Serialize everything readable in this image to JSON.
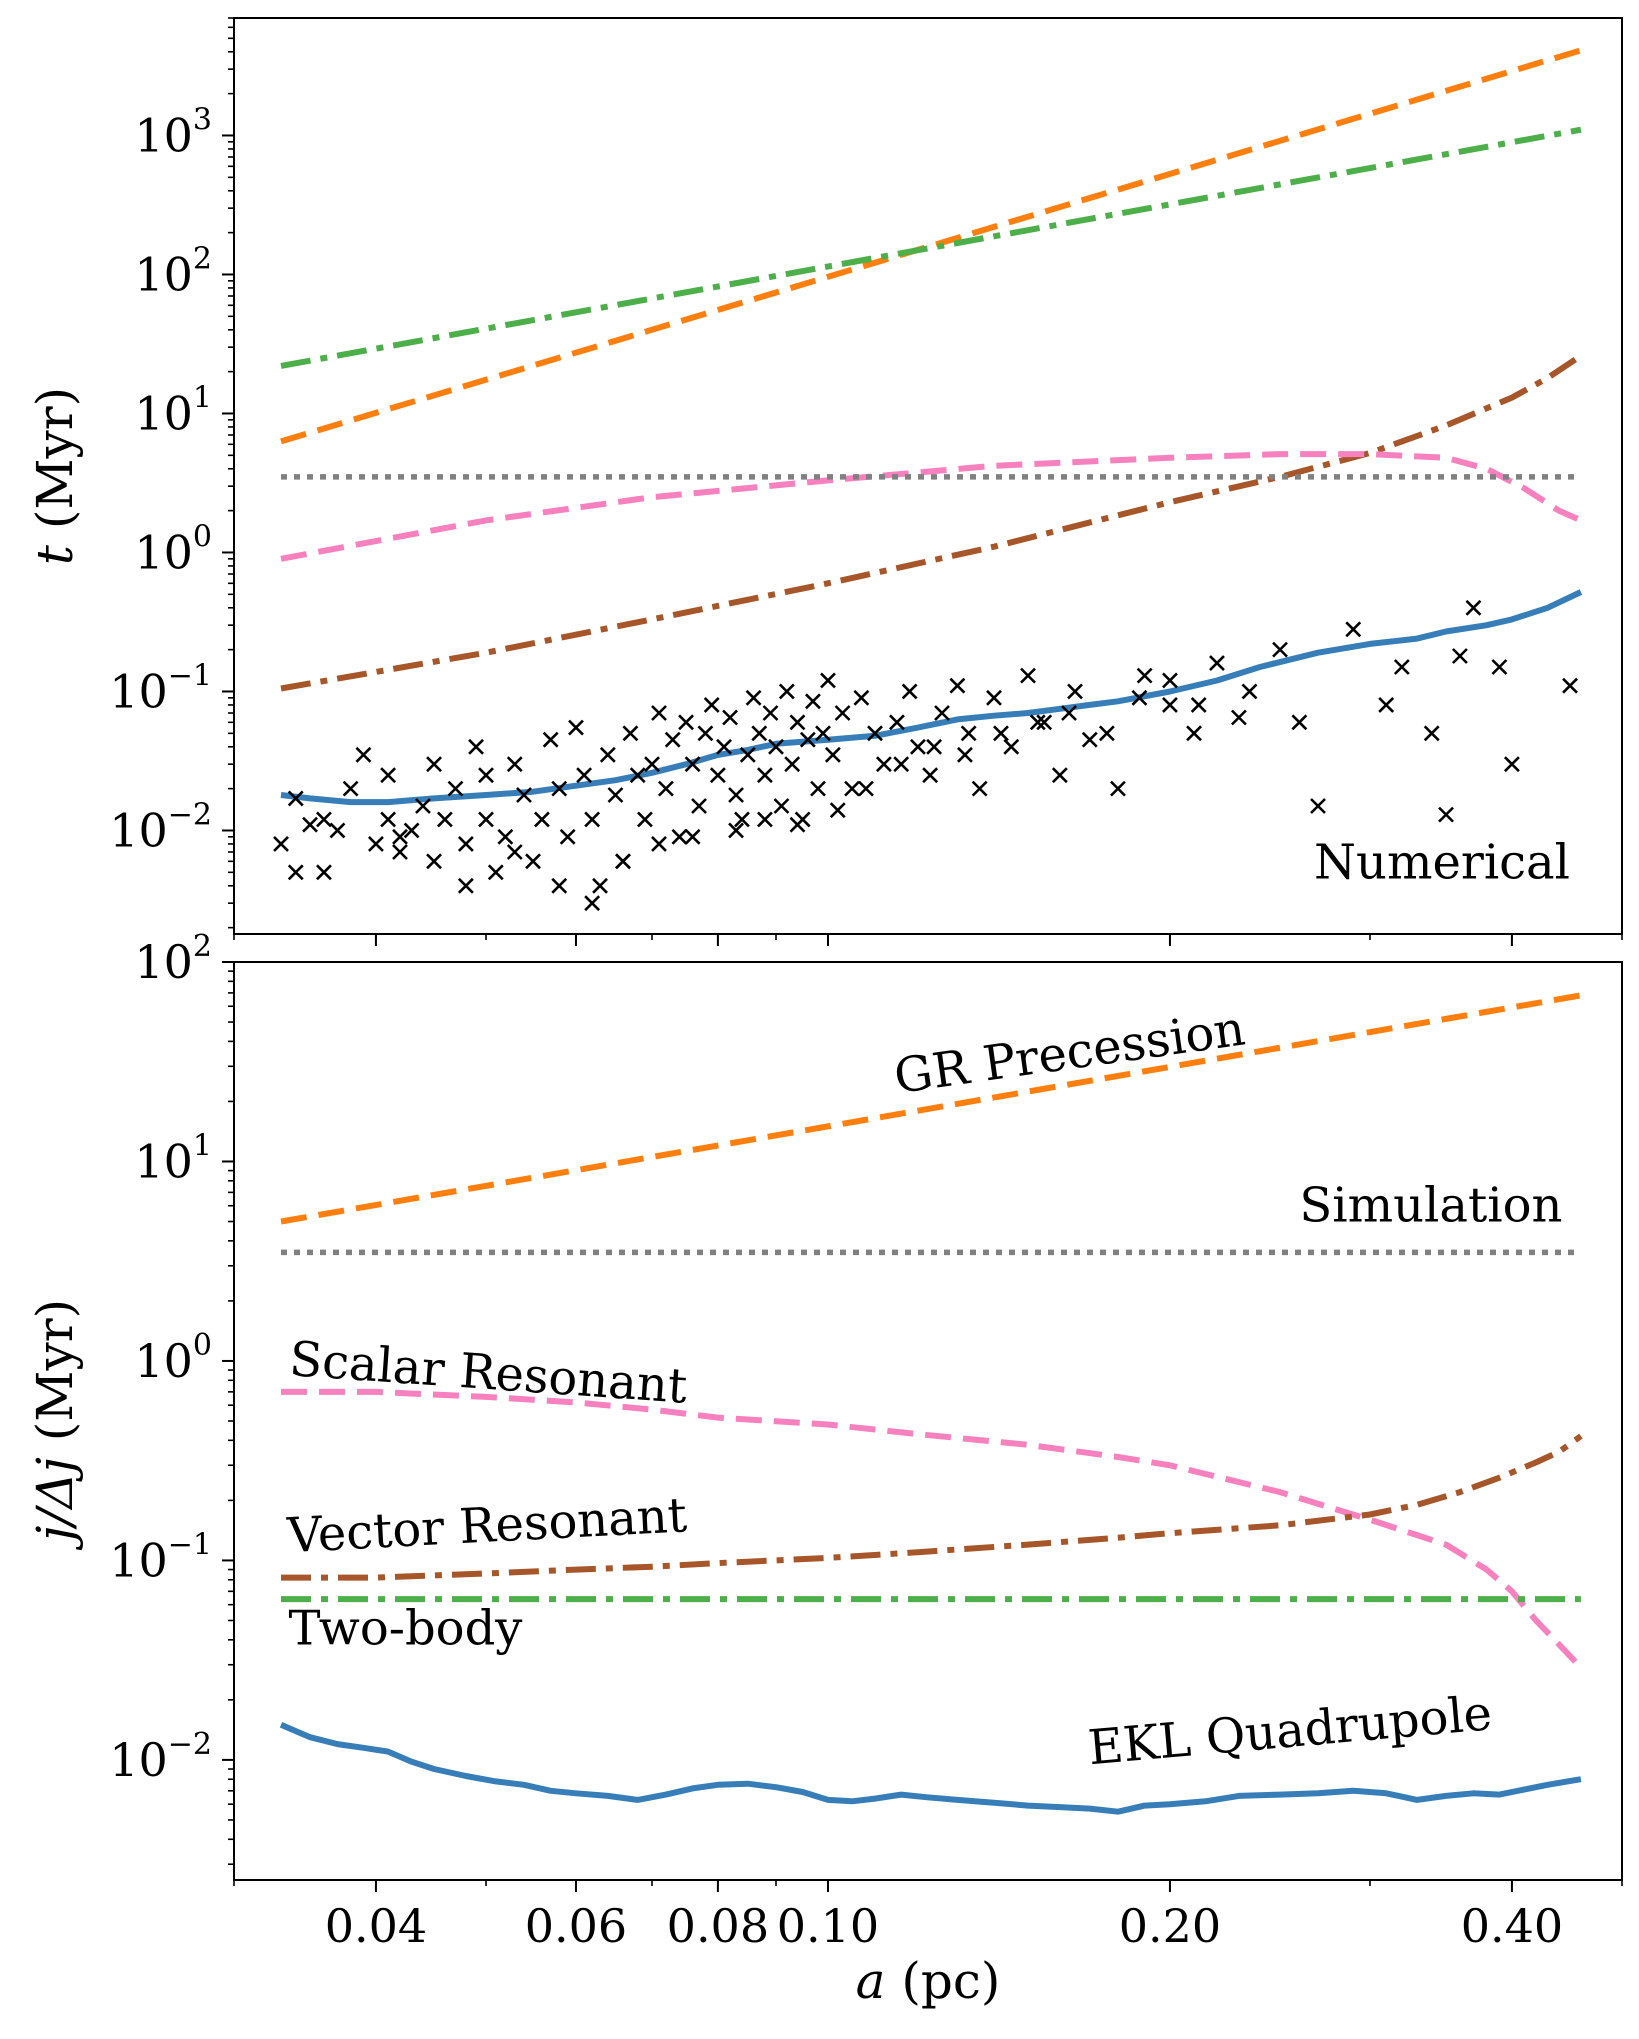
{
  "chart_data": [
    {
      "type": "line",
      "panel": "top",
      "xlabel_var": "a",
      "xlabel_unit": "(pc)",
      "ylabel_var": "t",
      "ylabel_unit": "(Myr)",
      "xscale": "log",
      "yscale": "log",
      "xlim": [
        0.03,
        0.5
      ],
      "ylim": [
        0.0018,
        7000
      ],
      "x_ticks": [
        {
          "value": 0.04,
          "label": "0.04"
        },
        {
          "value": 0.06,
          "label": "0.06"
        },
        {
          "value": 0.08,
          "label": "0.08"
        },
        {
          "value": 0.1,
          "label": "0.10"
        },
        {
          "value": 0.2,
          "label": "0.20"
        },
        {
          "value": 0.4,
          "label": "0.40"
        }
      ],
      "y_ticks": [
        {
          "value": 0.01,
          "base": "10",
          "exp": "−2"
        },
        {
          "value": 0.1,
          "base": "10",
          "exp": "−1"
        },
        {
          "value": 1,
          "base": "10",
          "exp": "0"
        },
        {
          "value": 10,
          "base": "10",
          "exp": "1"
        },
        {
          "value": 100,
          "base": "10",
          "exp": "2"
        },
        {
          "value": 1000,
          "base": "10",
          "exp": "3"
        }
      ],
      "annotations": [
        {
          "text": "Numerical",
          "x": 0.45,
          "y": 0.0045
        }
      ],
      "series": [
        {
          "name": "GR Precession",
          "color": "#ff7f0e",
          "dash": "dashed",
          "x": [
            0.033,
            0.46
          ],
          "y": [
            6.3,
            4100
          ]
        },
        {
          "name": "Two-body",
          "color": "#4daf4a",
          "dash": "dashdot",
          "x": [
            0.033,
            0.46
          ],
          "y": [
            22,
            1100
          ]
        },
        {
          "name": "Vector Resonant",
          "color": "#a65628",
          "dash": "dashdot",
          "x": [
            0.033,
            0.05,
            0.07,
            0.1,
            0.14,
            0.2,
            0.25,
            0.3,
            0.35,
            0.4,
            0.43,
            0.46
          ],
          "y": [
            0.105,
            0.19,
            0.33,
            0.6,
            1.1,
            2.3,
            3.5,
            5.2,
            8.2,
            13,
            18,
            26
          ]
        },
        {
          "name": "Scalar Resonant",
          "color": "#f781bf",
          "dash": "dashed",
          "x": [
            0.033,
            0.05,
            0.07,
            0.1,
            0.14,
            0.2,
            0.25,
            0.3,
            0.35,
            0.38,
            0.41,
            0.44,
            0.46
          ],
          "y": [
            0.9,
            1.7,
            2.5,
            3.3,
            4.2,
            4.8,
            5.1,
            5.1,
            4.8,
            4.0,
            2.9,
            2.0,
            1.7
          ]
        },
        {
          "name": "Simulation",
          "color": "#808080",
          "dash": "dotted",
          "x": [
            0.033,
            0.46
          ],
          "y": [
            3.5,
            3.5
          ]
        },
        {
          "name": "EKL Quadrupole",
          "color": "#377eb8",
          "dash": "solid",
          "x": [
            0.033,
            0.035,
            0.038,
            0.041,
            0.045,
            0.05,
            0.055,
            0.06,
            0.065,
            0.07,
            0.075,
            0.08,
            0.085,
            0.09,
            0.1,
            0.11,
            0.12,
            0.13,
            0.14,
            0.15,
            0.16,
            0.17,
            0.18,
            0.2,
            0.22,
            0.24,
            0.27,
            0.3,
            0.33,
            0.35,
            0.38,
            0.4,
            0.43,
            0.46
          ],
          "y": [
            0.018,
            0.017,
            0.016,
            0.016,
            0.017,
            0.018,
            0.019,
            0.021,
            0.023,
            0.026,
            0.03,
            0.035,
            0.038,
            0.042,
            0.045,
            0.048,
            0.055,
            0.063,
            0.067,
            0.07,
            0.075,
            0.08,
            0.085,
            0.1,
            0.12,
            0.15,
            0.19,
            0.22,
            0.24,
            0.27,
            0.3,
            0.33,
            0.4,
            0.52
          ]
        },
        {
          "name": "Numerical samples",
          "type": "scatter",
          "color": "#000000",
          "marker": "x",
          "x": [
            0.033,
            0.034,
            0.034,
            0.035,
            0.036,
            0.037,
            0.038,
            0.039,
            0.04,
            0.041,
            0.041,
            0.042,
            0.043,
            0.044,
            0.045,
            0.045,
            0.046,
            0.047,
            0.048,
            0.049,
            0.05,
            0.05,
            0.051,
            0.052,
            0.053,
            0.054,
            0.055,
            0.056,
            0.057,
            0.058,
            0.059,
            0.06,
            0.061,
            0.062,
            0.063,
            0.064,
            0.065,
            0.066,
            0.067,
            0.068,
            0.069,
            0.07,
            0.071,
            0.072,
            0.073,
            0.074,
            0.075,
            0.076,
            0.077,
            0.078,
            0.079,
            0.08,
            0.081,
            0.082,
            0.083,
            0.084,
            0.085,
            0.086,
            0.087,
            0.088,
            0.089,
            0.09,
            0.091,
            0.092,
            0.093,
            0.094,
            0.095,
            0.096,
            0.097,
            0.098,
            0.099,
            0.1,
            0.101,
            0.103,
            0.105,
            0.107,
            0.11,
            0.112,
            0.115,
            0.118,
            0.12,
            0.123,
            0.126,
            0.13,
            0.133,
            0.136,
            0.14,
            0.145,
            0.15,
            0.155,
            0.16,
            0.165,
            0.17,
            0.18,
            0.19,
            0.2,
            0.21,
            0.22,
            0.235,
            0.26,
            0.27,
            0.29,
            0.31,
            0.34,
            0.35,
            0.37,
            0.39,
            0.4,
            0.45,
            0.036,
            0.042,
            0.048,
            0.053,
            0.058,
            0.062,
            0.066,
            0.071,
            0.076,
            0.083,
            0.088,
            0.094,
            0.102,
            0.108,
            0.116,
            0.124,
            0.132,
            0.142,
            0.153,
            0.163,
            0.176,
            0.188,
            0.2,
            0.212,
            0.23,
            0.25,
            0.32,
            0.36
          ],
          "y": [
            0.008,
            0.005,
            0.017,
            0.011,
            0.012,
            0.01,
            0.02,
            0.035,
            0.008,
            0.012,
            0.025,
            0.007,
            0.01,
            0.015,
            0.03,
            0.006,
            0.012,
            0.02,
            0.008,
            0.04,
            0.012,
            0.025,
            0.005,
            0.009,
            0.03,
            0.018,
            0.006,
            0.012,
            0.045,
            0.02,
            0.009,
            0.055,
            0.025,
            0.012,
            0.004,
            0.035,
            0.018,
            0.006,
            0.05,
            0.025,
            0.012,
            0.03,
            0.07,
            0.02,
            0.045,
            0.009,
            0.06,
            0.03,
            0.015,
            0.05,
            0.08,
            0.025,
            0.04,
            0.065,
            0.018,
            0.012,
            0.035,
            0.09,
            0.05,
            0.025,
            0.07,
            0.04,
            0.015,
            0.1,
            0.03,
            0.06,
            0.012,
            0.045,
            0.085,
            0.02,
            0.05,
            0.12,
            0.035,
            0.07,
            0.02,
            0.09,
            0.05,
            0.03,
            0.06,
            0.1,
            0.04,
            0.025,
            0.07,
            0.11,
            0.05,
            0.02,
            0.09,
            0.04,
            0.13,
            0.06,
            0.025,
            0.1,
            0.045,
            0.02,
            0.13,
            0.08,
            0.05,
            0.16,
            0.1,
            0.06,
            0.015,
            0.28,
            0.08,
            0.05,
            0.013,
            0.4,
            0.15,
            0.03,
            0.11,
            0.005,
            0.009,
            0.004,
            0.007,
            0.004,
            0.003,
            0.006,
            0.008,
            0.009,
            0.01,
            0.012,
            0.011,
            0.014,
            0.02,
            0.03,
            0.04,
            0.035,
            0.05,
            0.06,
            0.07,
            0.05,
            0.09,
            0.12,
            0.08,
            0.065,
            0.2,
            0.15,
            0.18
          ]
        }
      ]
    },
    {
      "type": "line",
      "panel": "bottom",
      "xlabel_var": "a",
      "xlabel_unit": "(pc)",
      "ylabel_var": "j/Δj",
      "ylabel_unit": "(Myr)",
      "xscale": "log",
      "yscale": "log",
      "xlim": [
        0.03,
        0.5
      ],
      "ylim": [
        0.0025,
        100
      ],
      "x_ticks": [
        {
          "value": 0.04,
          "label": "0.04"
        },
        {
          "value": 0.06,
          "label": "0.06"
        },
        {
          "value": 0.08,
          "label": "0.08"
        },
        {
          "value": 0.1,
          "label": "0.10"
        },
        {
          "value": 0.2,
          "label": "0.20"
        },
        {
          "value": 0.4,
          "label": "0.40"
        }
      ],
      "y_ticks": [
        {
          "value": 0.01,
          "base": "10",
          "exp": "−2"
        },
        {
          "value": 0.1,
          "base": "10",
          "exp": "−1"
        },
        {
          "value": 1,
          "base": "10",
          "exp": "0"
        },
        {
          "value": 10,
          "base": "10",
          "exp": "1"
        },
        {
          "value": 100,
          "base": "10",
          "exp": "2"
        }
      ],
      "annotations": [
        {
          "text": "GR Precession",
          "x": 0.115,
          "y": 22,
          "rotation": -8
        },
        {
          "text": "Simulation",
          "x": 0.26,
          "y": 5.0
        },
        {
          "text": "Scalar Resonant",
          "x": 0.0335,
          "y": 0.85,
          "rotation": 4
        },
        {
          "text": "Vector Resonant",
          "x": 0.0335,
          "y": 0.11,
          "rotation": -3
        },
        {
          "text": "Two-body",
          "x": 0.0335,
          "y": 0.038
        },
        {
          "text": "EKL Quadrupole",
          "x": 0.17,
          "y": 0.0095,
          "rotation": -5
        }
      ],
      "series": [
        {
          "name": "GR Precession",
          "color": "#ff7f0e",
          "dash": "dashed",
          "x": [
            0.033,
            0.46
          ],
          "y": [
            5,
            68
          ]
        },
        {
          "name": "Simulation",
          "color": "#808080",
          "dash": "dotted",
          "x": [
            0.033,
            0.46
          ],
          "y": [
            3.5,
            3.5
          ]
        },
        {
          "name": "Scalar Resonant",
          "color": "#f781bf",
          "dash": "dashed",
          "x": [
            0.033,
            0.04,
            0.05,
            0.06,
            0.07,
            0.08,
            0.1,
            0.12,
            0.15,
            0.18,
            0.2,
            0.25,
            0.3,
            0.35,
            0.38,
            0.4,
            0.42,
            0.44,
            0.46
          ],
          "y": [
            0.7,
            0.7,
            0.66,
            0.62,
            0.57,
            0.52,
            0.48,
            0.43,
            0.38,
            0.33,
            0.3,
            0.22,
            0.16,
            0.12,
            0.09,
            0.07,
            0.05,
            0.038,
            0.029
          ]
        },
        {
          "name": "Vector Resonant",
          "color": "#a65628",
          "dash": "dashdot",
          "x": [
            0.033,
            0.04,
            0.05,
            0.06,
            0.07,
            0.08,
            0.1,
            0.12,
            0.15,
            0.18,
            0.2,
            0.25,
            0.3,
            0.33,
            0.36,
            0.39,
            0.42,
            0.44,
            0.46
          ],
          "y": [
            0.082,
            0.082,
            0.086,
            0.09,
            0.093,
            0.097,
            0.103,
            0.11,
            0.12,
            0.13,
            0.137,
            0.15,
            0.17,
            0.19,
            0.22,
            0.26,
            0.31,
            0.35,
            0.42
          ]
        },
        {
          "name": "Two-body",
          "color": "#4daf4a",
          "dash": "dashdot",
          "x": [
            0.033,
            0.46
          ],
          "y": [
            0.064,
            0.064
          ]
        },
        {
          "name": "EKL Quadrupole",
          "color": "#377eb8",
          "dash": "solid",
          "x": [
            0.033,
            0.035,
            0.037,
            0.039,
            0.041,
            0.043,
            0.045,
            0.048,
            0.051,
            0.054,
            0.057,
            0.06,
            0.064,
            0.068,
            0.072,
            0.076,
            0.08,
            0.085,
            0.09,
            0.095,
            0.1,
            0.105,
            0.11,
            0.116,
            0.122,
            0.13,
            0.14,
            0.15,
            0.16,
            0.17,
            0.18,
            0.19,
            0.2,
            0.215,
            0.23,
            0.25,
            0.27,
            0.29,
            0.31,
            0.33,
            0.35,
            0.37,
            0.39,
            0.41,
            0.43,
            0.46
          ],
          "y": [
            0.015,
            0.013,
            0.012,
            0.0115,
            0.011,
            0.0098,
            0.009,
            0.0083,
            0.0078,
            0.0075,
            0.007,
            0.0068,
            0.0066,
            0.0063,
            0.0067,
            0.0072,
            0.0075,
            0.0076,
            0.0073,
            0.0069,
            0.0063,
            0.0062,
            0.0064,
            0.0067,
            0.0065,
            0.0063,
            0.0061,
            0.0059,
            0.0058,
            0.0057,
            0.0055,
            0.0059,
            0.006,
            0.0062,
            0.0066,
            0.0067,
            0.0068,
            0.007,
            0.0068,
            0.0063,
            0.0066,
            0.0068,
            0.0067,
            0.0071,
            0.0075,
            0.008
          ]
        }
      ]
    }
  ]
}
